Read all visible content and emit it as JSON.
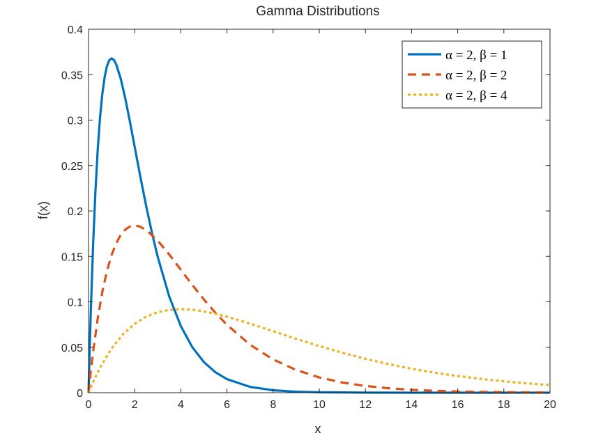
{
  "chart_data": {
    "type": "line",
    "title": "Gamma Distributions",
    "xlabel": "x",
    "ylabel": "f(x)",
    "xlim": [
      0,
      20
    ],
    "ylim": [
      0,
      0.4
    ],
    "xticks": [
      0,
      2,
      4,
      6,
      8,
      10,
      12,
      14,
      16,
      18,
      20
    ],
    "xtick_labels": [
      "0",
      "2",
      "4",
      "6",
      "8",
      "10",
      "12",
      "14",
      "16",
      "18",
      "20"
    ],
    "yticks": [
      0,
      0.05,
      0.1,
      0.15,
      0.2,
      0.25,
      0.3,
      0.35,
      0.4
    ],
    "ytick_labels": [
      "0",
      "0.05",
      "0.1",
      "0.15",
      "0.2",
      "0.25",
      "0.3",
      "0.35",
      "0.4"
    ],
    "grid": false,
    "legend_position": "top-right",
    "series": [
      {
        "name": "α = 2,  β = 1",
        "color": "#0072BD",
        "style": "solid",
        "x": [
          0,
          0.05,
          0.1,
          0.2,
          0.3,
          0.4,
          0.5,
          0.6,
          0.7,
          0.8,
          0.9,
          1.0,
          1.1,
          1.2,
          1.4,
          1.6,
          1.8,
          2.0,
          2.25,
          2.5,
          2.75,
          3.0,
          3.5,
          4.0,
          4.5,
          5.0,
          5.5,
          6.0,
          7.0,
          8.0,
          9.0,
          10.0,
          12.0,
          14.0,
          16.0,
          18.0,
          20.0
        ],
        "y": [
          0,
          0.0476,
          0.0905,
          0.1637,
          0.2222,
          0.2681,
          0.3033,
          0.3293,
          0.3476,
          0.3595,
          0.3659,
          0.3679,
          0.3662,
          0.3614,
          0.3452,
          0.323,
          0.2975,
          0.2707,
          0.2371,
          0.2052,
          0.1758,
          0.1494,
          0.1057,
          0.0733,
          0.05,
          0.0337,
          0.0225,
          0.0149,
          0.0064,
          0.0027,
          0.0011,
          0.0005,
          0.0001,
          0.0,
          0.0,
          0.0,
          0.0
        ]
      },
      {
        "name": "α = 2,  β = 2",
        "color": "#D95319",
        "style": "dashed",
        "x": [
          0,
          0.1,
          0.2,
          0.4,
          0.6,
          0.8,
          1.0,
          1.2,
          1.4,
          1.6,
          1.8,
          2.0,
          2.2,
          2.5,
          3.0,
          3.5,
          4.0,
          4.5,
          5.0,
          5.5,
          6.0,
          7.0,
          8.0,
          9.0,
          10.0,
          11.0,
          12.0,
          13.0,
          14.0,
          15.0,
          16.0,
          17.0,
          18.0,
          19.0,
          20.0
        ],
        "y": [
          0,
          0.0238,
          0.0452,
          0.0819,
          0.1111,
          0.1341,
          0.1516,
          0.1646,
          0.1738,
          0.1797,
          0.183,
          0.1839,
          0.1831,
          0.1791,
          0.1673,
          0.1521,
          0.1353,
          0.1186,
          0.1026,
          0.0879,
          0.0747,
          0.0528,
          0.0366,
          0.025,
          0.0168,
          0.0112,
          0.0074,
          0.0049,
          0.0032,
          0.0021,
          0.0013,
          0.0009,
          0.0006,
          0.0004,
          0.0002
        ]
      },
      {
        "name": "α = 2,  β = 4",
        "color": "#EDB120",
        "style": "dotted",
        "x": [
          0,
          0.2,
          0.5,
          1.0,
          1.5,
          2.0,
          2.5,
          3.0,
          3.5,
          4.0,
          4.5,
          5.0,
          5.5,
          6.0,
          7.0,
          8.0,
          9.0,
          10.0,
          11.0,
          12.0,
          13.0,
          14.0,
          15.0,
          16.0,
          17.0,
          18.0,
          19.0,
          20.0
        ],
        "y": [
          0,
          0.0119,
          0.0276,
          0.0487,
          0.0644,
          0.0758,
          0.0837,
          0.0886,
          0.0911,
          0.092,
          0.0914,
          0.0895,
          0.0868,
          0.0837,
          0.076,
          0.0677,
          0.0592,
          0.0513,
          0.044,
          0.0373,
          0.0315,
          0.0264,
          0.022,
          0.0183,
          0.0152,
          0.0125,
          0.0103,
          0.0084
        ]
      }
    ]
  }
}
